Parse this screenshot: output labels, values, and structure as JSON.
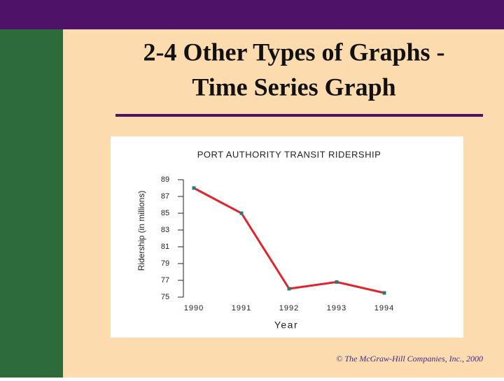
{
  "slide": {
    "title": [
      "2-4  Other Types of Graphs -",
      "Time Series Graph"
    ],
    "footer": "© The McGraw-Hill Companies, Inc., 2000"
  },
  "chart_data": {
    "type": "line",
    "title": "PORT AUTHORITY TRANSIT RIDERSHIP",
    "x_label": "Year",
    "y_label": "Ridership (in millions)",
    "categories": [
      "1990",
      "1991",
      "1992",
      "1993",
      "1994"
    ],
    "series": [
      {
        "name": "Ridership",
        "color": "#e0242c",
        "marker_color": "#2a7a78",
        "values": [
          88,
          85,
          76,
          76.8,
          75.5
        ]
      }
    ],
    "ylim": [
      75,
      89
    ],
    "yticks": [
      75,
      77,
      79,
      81,
      83,
      85,
      87,
      89
    ],
    "grid": false
  }
}
